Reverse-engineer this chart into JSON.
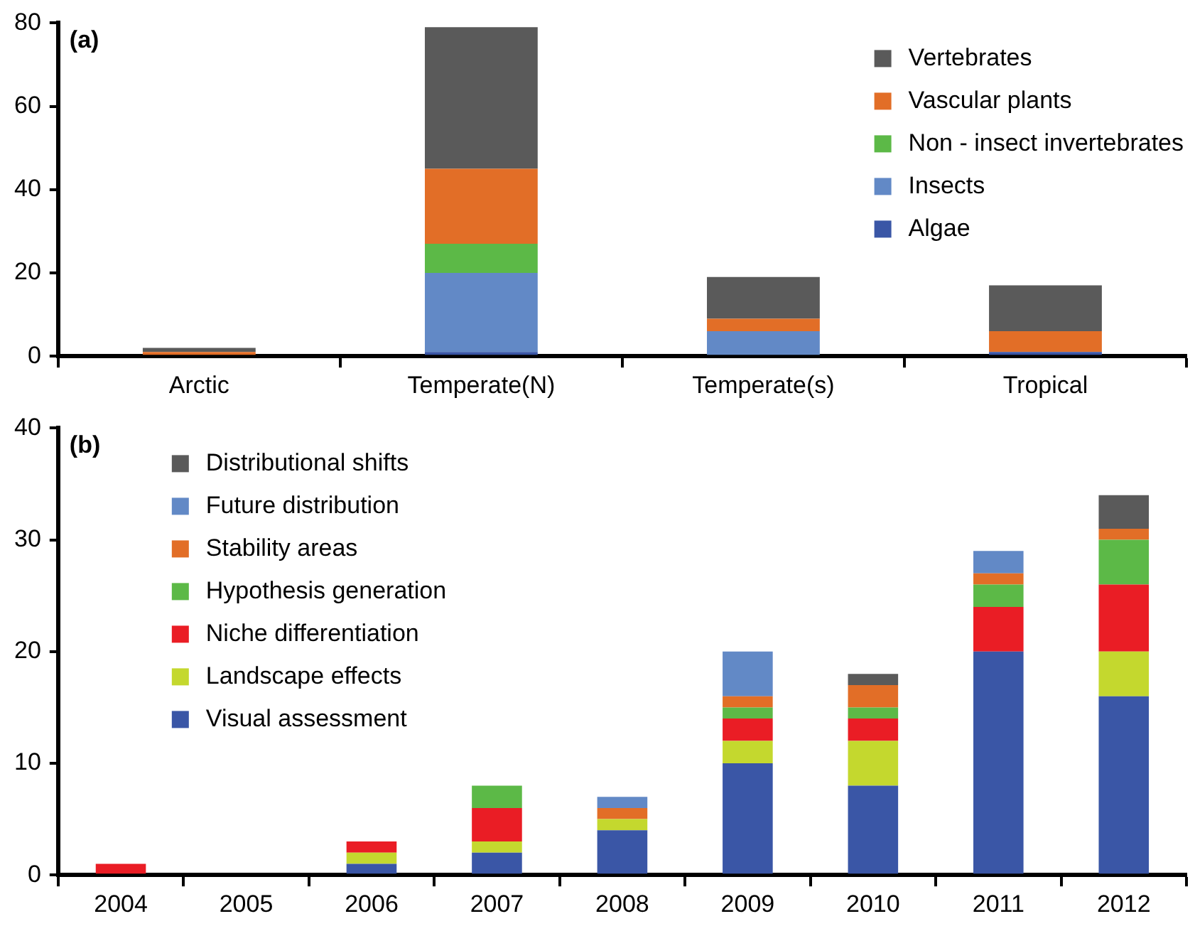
{
  "chart_data": [
    {
      "type": "bar",
      "title": "(a)",
      "stacked": true,
      "legend": "top right",
      "grid": false,
      "categories": [
        "Arctic",
        "Temperate(N)",
        "Temperate(s)",
        "Tropical"
      ],
      "ylim": [
        0,
        80
      ],
      "yticks": [
        0,
        20,
        40,
        60,
        80
      ],
      "series": [
        {
          "name": "Algae",
          "color": "#3a56a6",
          "values": [
            0,
            1,
            0,
            1
          ]
        },
        {
          "name": "Insects",
          "color": "#6289c6",
          "values": [
            0,
            19,
            6,
            0
          ]
        },
        {
          "name": "Non - insect invertebrates",
          "color": "#5cb947",
          "values": [
            0,
            7,
            0,
            0
          ]
        },
        {
          "name": "Vascular plants",
          "color": "#e26e27",
          "values": [
            1,
            18,
            3,
            5
          ]
        },
        {
          "name": "Vertebrates",
          "color": "#5a5a5a",
          "values": [
            1,
            34,
            10,
            11
          ]
        }
      ]
    },
    {
      "type": "bar",
      "title": "(b)",
      "stacked": true,
      "legend": "top left",
      "grid": false,
      "categories": [
        "2004",
        "2005",
        "2006",
        "2007",
        "2008",
        "2009",
        "2010",
        "2011",
        "2012"
      ],
      "ylim": [
        0,
        40
      ],
      "yticks": [
        0,
        10,
        20,
        30,
        40
      ],
      "series": [
        {
          "name": "Visual assessment",
          "color": "#3a56a6",
          "values": [
            0,
            0,
            1,
            2,
            4,
            10,
            8,
            20,
            16
          ]
        },
        {
          "name": "Landscape effects",
          "color": "#c4d82e",
          "values": [
            0,
            0,
            1,
            1,
            1,
            2,
            4,
            0,
            4
          ]
        },
        {
          "name": "Niche differentiation",
          "color": "#ea1d25",
          "values": [
            1,
            0,
            1,
            3,
            0,
            2,
            2,
            4,
            6
          ]
        },
        {
          "name": "Hypothesis generation",
          "color": "#5cb947",
          "values": [
            0,
            0,
            0,
            2,
            0,
            1,
            1,
            2,
            4
          ]
        },
        {
          "name": "Stability areas",
          "color": "#e26e27",
          "values": [
            0,
            0,
            0,
            0,
            1,
            1,
            2,
            1,
            1
          ]
        },
        {
          "name": "Future distribution",
          "color": "#6289c6",
          "values": [
            0,
            0,
            0,
            0,
            1,
            4,
            0,
            2,
            0
          ]
        },
        {
          "name": "Distributional shifts",
          "color": "#5a5a5a",
          "values": [
            0,
            0,
            0,
            0,
            0,
            0,
            1,
            0,
            3
          ]
        }
      ]
    }
  ]
}
